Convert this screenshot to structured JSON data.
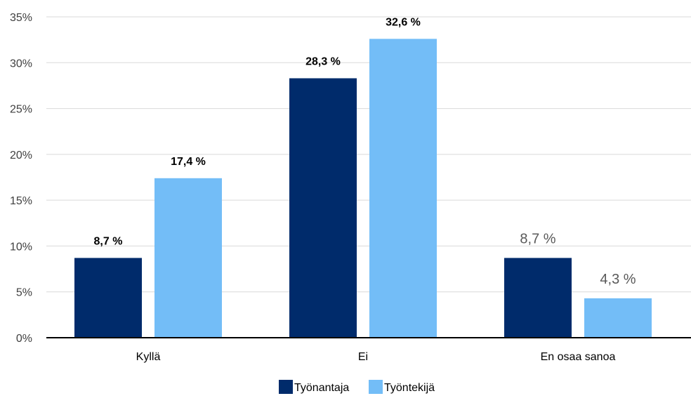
{
  "chart_data": {
    "type": "bar",
    "title": "",
    "xlabel": "",
    "ylabel": "",
    "categories": [
      "Kyllä",
      "Ei",
      "En osaa sanoa"
    ],
    "series": [
      {
        "name": "Työnantaja",
        "color": "#002b6b",
        "values": [
          8.7,
          28.3,
          8.7
        ],
        "labels": [
          "8,7 %",
          "28,3 %",
          "8,7 %"
        ]
      },
      {
        "name": "Työntekijä",
        "color": "#73bdf7",
        "values": [
          17.4,
          32.6,
          4.3
        ],
        "labels": [
          "17,4 %",
          "32,6 %",
          "4,3 %"
        ]
      }
    ],
    "label_bold": [
      true,
      true,
      false
    ],
    "ylim": [
      0,
      35
    ],
    "yticks": [
      0,
      5,
      10,
      15,
      20,
      25,
      30,
      35
    ],
    "ytick_labels": [
      "0%",
      "5%",
      "10%",
      "15%",
      "20%",
      "25%",
      "30%",
      "35%"
    ],
    "grid": true,
    "legend": "bottom-center"
  }
}
